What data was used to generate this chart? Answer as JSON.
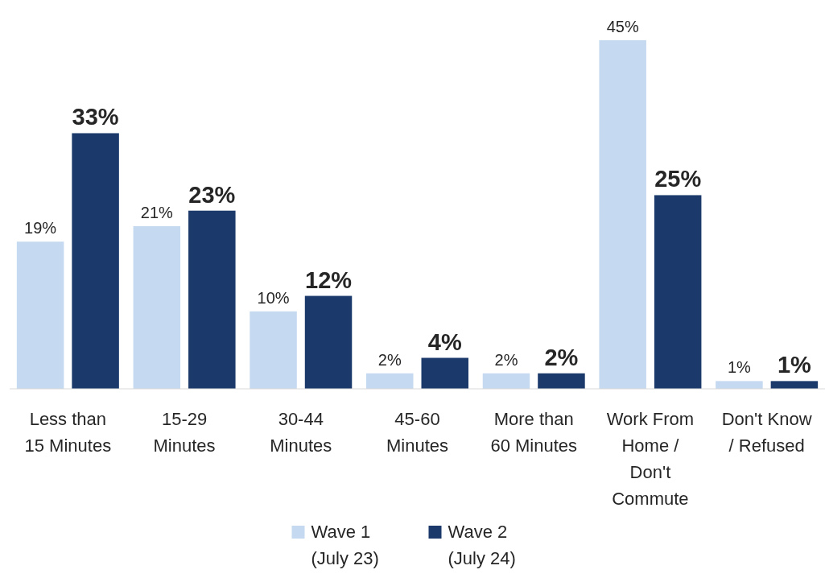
{
  "chart_data": {
    "type": "bar",
    "categories": [
      "Less than 15 Minutes",
      "15-29 Minutes",
      "30-44 Minutes",
      "45-60 Minutes",
      "More than 60 Minutes",
      "Work From Home / Don't Commute",
      "Don't Know / Refused"
    ],
    "series": [
      {
        "name": "Wave 1 (July 23)",
        "color": "#c5d9f0",
        "values": [
          19,
          21,
          10,
          2,
          2,
          45,
          1
        ],
        "value_labels": [
          "19%",
          "21%",
          "10%",
          "2%",
          "2%",
          "45%",
          "1%"
        ]
      },
      {
        "name": "Wave 2 (July 24)",
        "color": "#1b3a6b",
        "values": [
          33,
          23,
          12,
          4,
          2,
          25,
          1
        ],
        "value_labels": [
          "33%",
          "23%",
          "12%",
          "4%",
          "2%",
          "25%",
          "1%"
        ]
      }
    ],
    "legend": "bottom"
  }
}
